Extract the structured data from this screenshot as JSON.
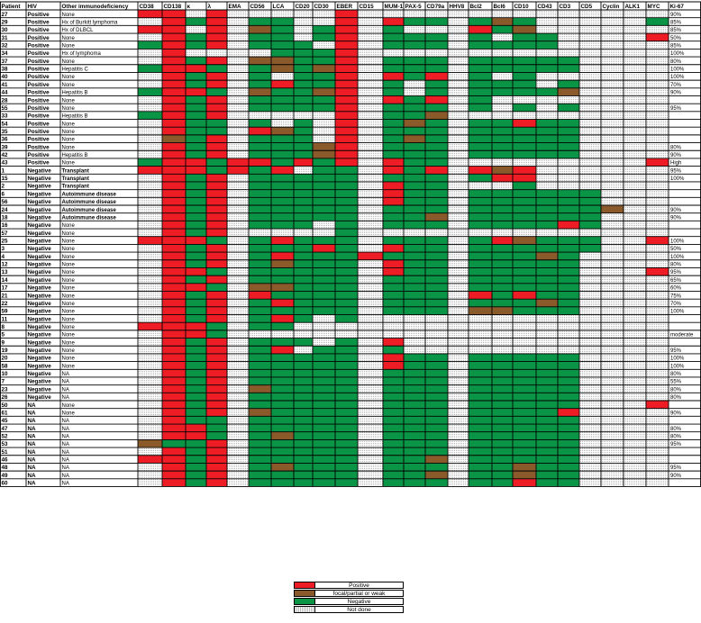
{
  "chart_data": {
    "type": "heatmap",
    "columns": [
      "Patient",
      "HIV",
      "Other immunodeficiency",
      "CD38",
      "CD138",
      "κ",
      "λ",
      "EMA",
      "CD56",
      "LCA",
      "CD20",
      "CD30",
      "EBER",
      "CD15",
      "MUM-1",
      "PAX-5",
      "CD79a",
      "HHV8",
      "Bcl2",
      "Bcl6",
      "CD10",
      "CD43",
      "CD3",
      "CD5",
      "Cyclin",
      "ALK1",
      "MYC",
      "Ki-67"
    ],
    "marker_columns": [
      "CD38",
      "CD138",
      "κ",
      "λ",
      "EMA",
      "CD56",
      "LCA",
      "CD20",
      "CD30",
      "EBER",
      "CD15",
      "MUM-1",
      "PAX-5",
      "CD79a",
      "HHV8",
      "Bcl2",
      "Bcl6",
      "CD10",
      "CD43",
      "CD3",
      "CD5",
      "Cyclin",
      "ALK1",
      "MYC"
    ],
    "codes": {
      "P": "Positive",
      "F": "focal/partial or weak",
      "N": "Negative",
      "X": "Not done"
    },
    "colors": {
      "P": "#ee1c25",
      "F": "#8b5a2b",
      "N": "#0a9445",
      "X": "#ffffff"
    },
    "rows": [
      {
        "patient": "27",
        "hiv": "Positive",
        "other": "None",
        "cells": "PPXPXXXXXPXXXXXXXXXXXXXX",
        "ki67": "90%"
      },
      {
        "patient": "29",
        "hiv": "Positive",
        "other": "Hx of Burkitt lymphoma",
        "cells": "XPNPXNNXXPXPNNXNFNXXXXXN",
        "ki67": "85%"
      },
      {
        "patient": "30",
        "hiv": "Positive",
        "other": "Hx of DLBCL",
        "cells": "PPXPXFNXNPXNXXXPNFXXXXXX",
        "ki67": "85%"
      },
      {
        "patient": "31",
        "hiv": "Positive",
        "other": "None",
        "cells": "XPNPXNNXNPXNNNXNXNNXXXXP",
        "ki67": "50%"
      },
      {
        "patient": "32",
        "hiv": "Positive",
        "other": "None",
        "cells": "NPNPXNNNXPXNNNXNNNNXXXXX",
        "ki67": "85%"
      },
      {
        "patient": "34",
        "hiv": "Positive",
        "other": "Hx of lymphoma",
        "cells": "XPXXXXNNNPXXXXXXXXXXXXXX",
        "ki67": "100%"
      },
      {
        "patient": "37",
        "hiv": "Positive",
        "other": "None",
        "cells": "XPNPXFFNNPXNNNXNNNNNXXXX",
        "ki67": "80%"
      },
      {
        "patient": "38",
        "hiv": "Positive",
        "other": "Hepatitis C",
        "cells": "NPPNXNFNFPXNNNXNNNNNXXXX",
        "ki67": "100%"
      },
      {
        "patient": "40",
        "hiv": "Positive",
        "other": "None",
        "cells": "XPNPXNXNNPXPNPXNXNXXXXXX",
        "ki67": "100%"
      },
      {
        "patient": "41",
        "hiv": "Positive",
        "other": "None",
        "cells": "XPNPXNPNNPXNXNXNNNXNXXXX",
        "ki67": "70%"
      },
      {
        "patient": "44",
        "hiv": "Positive",
        "other": "Hepatitis B",
        "cells": "NPPNXFNNFPXNXNXNNNNFXXXX",
        "ki67": "90%"
      },
      {
        "patient": "28",
        "hiv": "Positive",
        "other": "None",
        "cells": "XPNPXNNNNPXPNPXNXXXXXXXX",
        "ki67": ""
      },
      {
        "patient": "55",
        "hiv": "Positive",
        "other": "None",
        "cells": "XPNPXNNNNPXNNNXNXNXNXXXX",
        "ki67": "95%"
      },
      {
        "patient": "33",
        "hiv": "Positive",
        "other": "Hepatitis B",
        "cells": "NPNPXXXXXPXNNFXXXXXXXXXX",
        "ki67": ""
      },
      {
        "patient": "54",
        "hiv": "Positive",
        "other": "None",
        "cells": "XPNNXNXNXPXNFNXNNPNNXXXX",
        "ki67": ""
      },
      {
        "patient": "35",
        "hiv": "Positive",
        "other": "None",
        "cells": "XPNNXPFNXPXNNNXNNNNNXXXX",
        "ki67": ""
      },
      {
        "patient": "36",
        "hiv": "Positive",
        "other": "None",
        "cells": "XFNPXNNNXPXNFNXNNNNNXXXX",
        "ki67": ""
      },
      {
        "patient": "39",
        "hiv": "Positive",
        "other": "None",
        "cells": "XPNPXNNNFPXNNNXNNNNNXXXX",
        "ki67": "80%"
      },
      {
        "patient": "42",
        "hiv": "Positive",
        "other": "Hepatitis B",
        "cells": "XPNPXNNNFPXNNNXNNNNNXXXX",
        "ki67": "90%"
      },
      {
        "patient": "43",
        "hiv": "Positive",
        "other": "None",
        "cells": "NPPNPPNPNPXPNNXXXXXXXXXP",
        "ki67": "High"
      },
      {
        "patient": "1",
        "hiv": "Negative",
        "other": "Transplant",
        "cells": "PPPNPNPXNNXPNPXPFPXXXXXX",
        "ki67": "95%"
      },
      {
        "patient": "15",
        "hiv": "Negative",
        "other": "Transplant",
        "cells": "XPNPXNNNNNXNNNXNPPXXXXXX",
        "ki67": "100%"
      },
      {
        "patient": "2",
        "hiv": "Negative",
        "other": "Transplant",
        "cells": "XPNPXNNNNNXPNNXXXNXXXXXX",
        "ki67": ""
      },
      {
        "patient": "6",
        "hiv": "Negative",
        "other": "Autoimmune disease",
        "cells": "XPNPXNNNNNXPNNXNNNNNNXXX",
        "ki67": ""
      },
      {
        "patient": "56",
        "hiv": "Negative",
        "other": "Autoimmune disease",
        "cells": "XPNPXNNNNNXPNNXNNNNNNXXX",
        "ki67": ""
      },
      {
        "patient": "24",
        "hiv": "Negative",
        "other": "Autoimmune disease",
        "cells": "XPNPXNNNNNXNNNXNNNNNNFXX",
        "ki67": "90%"
      },
      {
        "patient": "18",
        "hiv": "Negative",
        "other": "Autoimmune disease",
        "cells": "XPNPXNNNNNXNNFXNNNNNNXXX",
        "ki67": "90%"
      },
      {
        "patient": "16",
        "hiv": "Negative",
        "other": "None",
        "cells": "XPNPXNNNXNXNNNXNNNNPNXXX",
        "ki67": ""
      },
      {
        "patient": "57",
        "hiv": "Negative",
        "other": "None",
        "cells": "XPNPXXXXXNXXXXXXXXXXXXXX",
        "ki67": ""
      },
      {
        "patient": "25",
        "hiv": "Negative",
        "other": "None",
        "cells": "PPPNXNPNNNXNNNXNPFNNNXXP",
        "ki67": "100%"
      },
      {
        "patient": "3",
        "hiv": "Negative",
        "other": "None",
        "cells": "XPNPXNNNPNXPNNXNNNNNNXXX",
        "ki67": "50%"
      },
      {
        "patient": "4",
        "hiv": "Negative",
        "other": "None",
        "cells": "XPNPXNPNNNPNNNXNNNFNXXXX",
        "ki67": "100%"
      },
      {
        "patient": "12",
        "hiv": "Negative",
        "other": "None",
        "cells": "XPNPXNFNNNXPNNXNNNNNXXXX",
        "ki67": "80%"
      },
      {
        "patient": "13",
        "hiv": "Negative",
        "other": "None",
        "cells": "XPPNXNNNNNXPNNXNNNNNXXXP",
        "ki67": "95%"
      },
      {
        "patient": "14",
        "hiv": "Negative",
        "other": "None",
        "cells": "XPNPXNNNNNXNNNXNNNNNXXXX",
        "ki67": "65%"
      },
      {
        "patient": "17",
        "hiv": "Negative",
        "other": "None",
        "cells": "XPPNXFFNNNXNNNXNNNNNXXXX",
        "ki67": "60%"
      },
      {
        "patient": "21",
        "hiv": "Negative",
        "other": "None",
        "cells": "XPNPXPNNNNXNNNXPNPNNXXXX",
        "ki67": "75%"
      },
      {
        "patient": "22",
        "hiv": "Negative",
        "other": "None",
        "cells": "XPNPXNPNNNXNNNXNNNFNXXXX",
        "ki67": "70%"
      },
      {
        "patient": "59",
        "hiv": "Negative",
        "other": "None",
        "cells": "XPNPXNNNNNXNNNXFFNNNXXXX",
        "ki67": "100%"
      },
      {
        "patient": "11",
        "hiv": "Negative",
        "other": "None",
        "cells": "XPNPXNPNXNXXXXXXXXXXXXXX",
        "ki67": ""
      },
      {
        "patient": "8",
        "hiv": "Negative",
        "other": "None",
        "cells": "PPPNXNNXXXXXXXXXXXXXXXXX",
        "ki67": ""
      },
      {
        "patient": "5",
        "hiv": "Negative",
        "other": "None",
        "cells": "XPPNXXXXXXXXXXXXXXXXXXXX",
        "ki67": "moderate"
      },
      {
        "patient": "9",
        "hiv": "Negative",
        "other": "None",
        "cells": "XPNPXNNNXNXPXXXXXXXXXXXX",
        "ki67": ""
      },
      {
        "patient": "19",
        "hiv": "Negative",
        "other": "None",
        "cells": "XPNPXNPXNNXNXXXXXXXXXXXX",
        "ki67": "95%"
      },
      {
        "patient": "20",
        "hiv": "Negative",
        "other": "None",
        "cells": "XPNPXNNNNNXPNNXNNNNNXXXX",
        "ki67": "100%"
      },
      {
        "patient": "58",
        "hiv": "Negative",
        "other": "None",
        "cells": "XPNPXNNNNNXPNNXNNNNNXXXX",
        "ki67": "100%"
      },
      {
        "patient": "10",
        "hiv": "Negative",
        "other": "NA",
        "cells": "XPNPXNNNNNXNNNXNNNNNXXXX",
        "ki67": "80%"
      },
      {
        "patient": "7",
        "hiv": "Negative",
        "other": "NA",
        "cells": "XPNPXNNNNNXNNNXNNNNNXXXX",
        "ki67": "55%"
      },
      {
        "patient": "23",
        "hiv": "Negative",
        "other": "NA",
        "cells": "XPNPXFNNNNXNNNXNNNNNXXXX",
        "ki67": "80%"
      },
      {
        "patient": "26",
        "hiv": "Negative",
        "other": "NA",
        "cells": "XPNPXNNNNNXNNNXNNNNNXXXX",
        "ki67": "80%"
      },
      {
        "patient": "50",
        "hiv": "NA",
        "other": "None",
        "cells": "XPNPXNNNNNXNNNXNNNNNXXXP",
        "ki67": ""
      },
      {
        "patient": "61",
        "hiv": "NA",
        "other": "None",
        "cells": "XPNPXFNNNNXNNNXNNNNPXXXX",
        "ki67": "90%"
      },
      {
        "patient": "45",
        "hiv": "NA",
        "other": "NA",
        "cells": "XPNNXNNNNNXNNNXNNNNNXXXX",
        "ki67": ""
      },
      {
        "patient": "47",
        "hiv": "NA",
        "other": "NA",
        "cells": "XPPNXNNNNNXNNNXNNNNNXXXX",
        "ki67": "80%"
      },
      {
        "patient": "52",
        "hiv": "NA",
        "other": "NA",
        "cells": "XPPNXNFNNNXNNNXNNNNNXXXX",
        "ki67": "80%"
      },
      {
        "patient": "53",
        "hiv": "NA",
        "other": "NA",
        "cells": "FNNPXNNNNNXNNNXNNNNNXXXX",
        "ki67": "95%"
      },
      {
        "patient": "51",
        "hiv": "NA",
        "other": "NA",
        "cells": "XPNPXNNNNNXNNNXNNNNNXXXX",
        "ki67": ""
      },
      {
        "patient": "46",
        "hiv": "NA",
        "other": "NA",
        "cells": "PPNPXNNNNNXNNFXNNNNNXXXX",
        "ki67": ""
      },
      {
        "patient": "48",
        "hiv": "NA",
        "other": "NA",
        "cells": "XPNPXNFNNNXNNNXNNFNNXXXX",
        "ki67": "95%"
      },
      {
        "patient": "49",
        "hiv": "NA",
        "other": "NA",
        "cells": "XPNPXNNNNNXNNFXNNFNNXXXX",
        "ki67": "90%"
      },
      {
        "patient": "60",
        "hiv": "NA",
        "other": "NA",
        "cells": "XPNPXNNNNNXNNNXNNPNNXXXX",
        "ki67": ""
      }
    ],
    "legend": [
      {
        "code": "P",
        "label": "Positive"
      },
      {
        "code": "F",
        "label": "focal/partial or weak"
      },
      {
        "code": "N",
        "label": "Negative"
      },
      {
        "code": "X",
        "label": "Not done"
      }
    ]
  }
}
